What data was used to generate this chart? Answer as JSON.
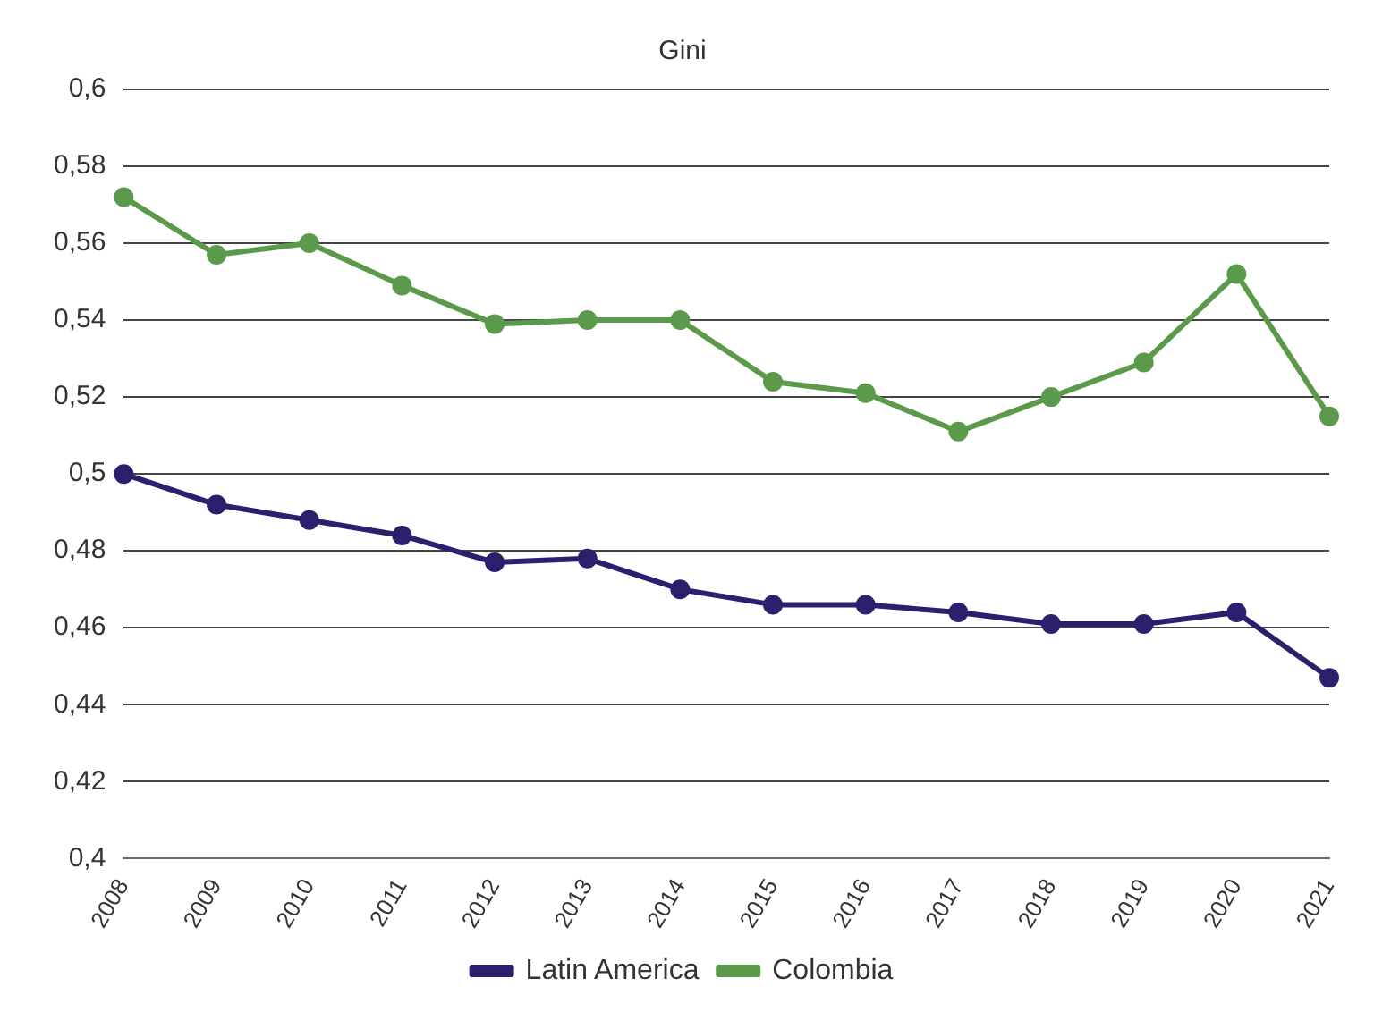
{
  "chart_data": {
    "type": "line",
    "title": "Gini",
    "categories": [
      "2008",
      "2009",
      "2010",
      "2011",
      "2012",
      "2013",
      "2014",
      "2015",
      "2016",
      "2017",
      "2018",
      "2019",
      "2020",
      "2021"
    ],
    "series": [
      {
        "name": "Latin America",
        "color": "#2e1f6e",
        "values": [
          0.5,
          0.492,
          0.488,
          0.484,
          0.477,
          0.478,
          0.47,
          0.466,
          0.466,
          0.464,
          0.461,
          0.461,
          0.464,
          0.447
        ]
      },
      {
        "name": "Colombia",
        "color": "#5a9a4a",
        "values": [
          0.572,
          0.557,
          0.56,
          0.549,
          0.539,
          0.54,
          0.54,
          0.524,
          0.521,
          0.511,
          0.52,
          0.529,
          0.552,
          0.515
        ]
      }
    ],
    "ylim": [
      0.4,
      0.6
    ],
    "yticks": [
      {
        "value": 0.4,
        "label": "0,4"
      },
      {
        "value": 0.42,
        "label": "0,42"
      },
      {
        "value": 0.44,
        "label": "0,44"
      },
      {
        "value": 0.46,
        "label": "0,46"
      },
      {
        "value": 0.48,
        "label": "0,48"
      },
      {
        "value": 0.5,
        "label": "0,5"
      },
      {
        "value": 0.52,
        "label": "0,52"
      },
      {
        "value": 0.54,
        "label": "0,54"
      },
      {
        "value": 0.56,
        "label": "0,56"
      },
      {
        "value": 0.58,
        "label": "0,58"
      },
      {
        "value": 0.6,
        "label": "0,6"
      }
    ],
    "grid": "y",
    "legend": "bottom",
    "marker": "circle",
    "line_style": "solid"
  }
}
